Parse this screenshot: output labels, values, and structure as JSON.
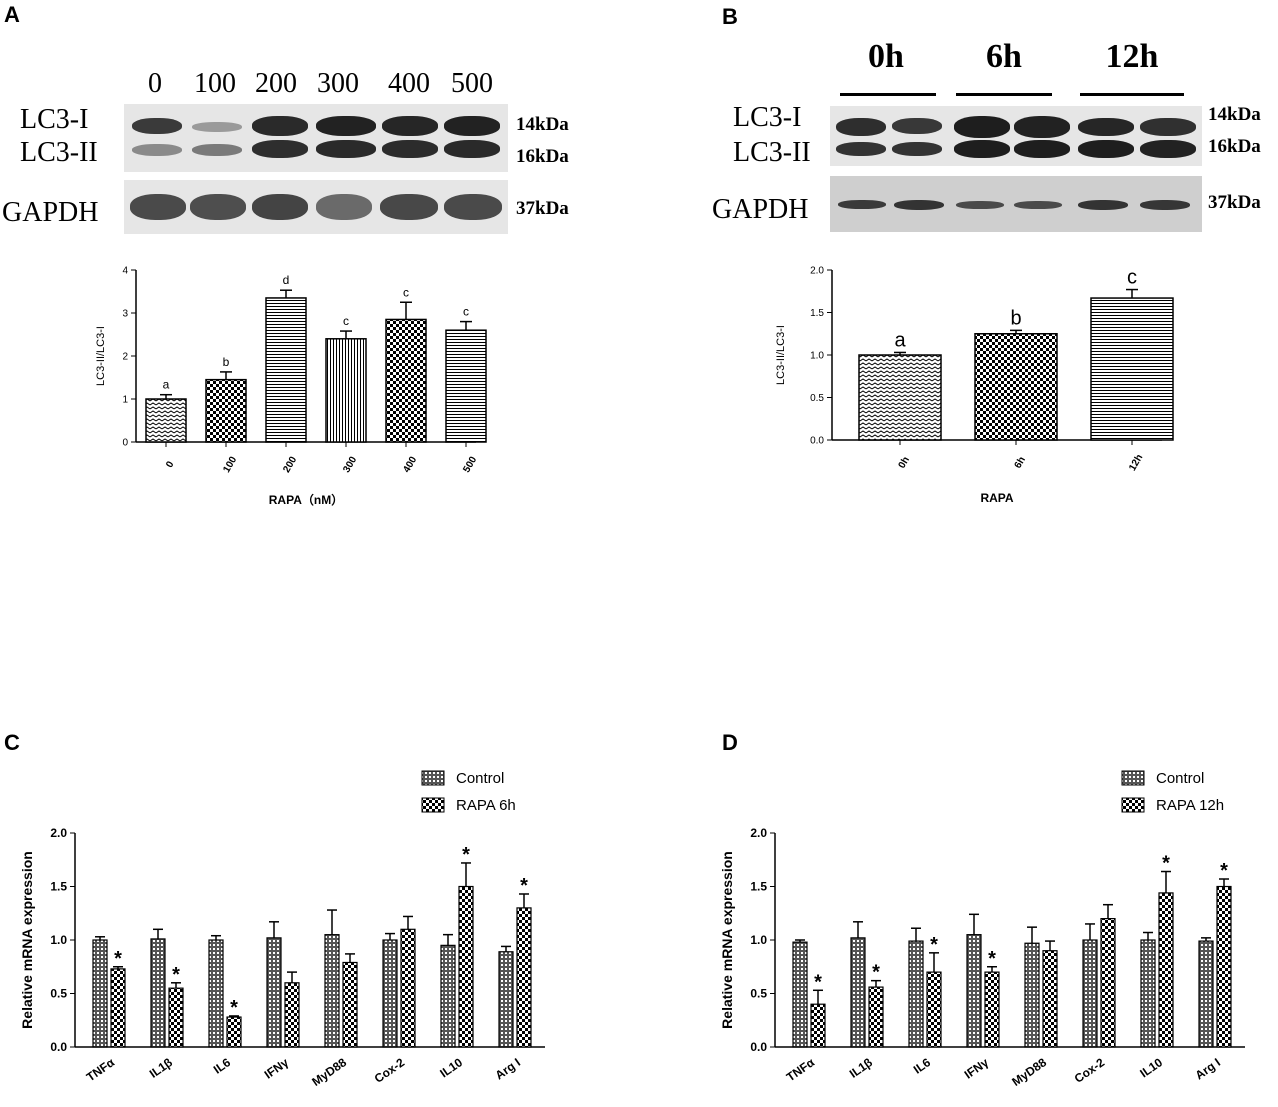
{
  "panels": {
    "A": {
      "label": "A",
      "lanes": [
        "0",
        "100",
        "200",
        "300",
        "400",
        "500"
      ],
      "bands": {
        "lc3i": "LC3-I",
        "lc3ii": "LC3-II",
        "gapdh": "GAPDH"
      },
      "kda": {
        "lc3i": "14kDa",
        "lc3ii": "16kDa",
        "gapdh": "37kDa"
      }
    },
    "B": {
      "label": "B",
      "groups": [
        "0h",
        "6h",
        "12h"
      ],
      "bands": {
        "lc3i": "LC3-I",
        "lc3ii": "LC3-II",
        "gapdh": "GAPDH"
      },
      "kda": {
        "lc3i": "14kDa",
        "lc3ii": "16kDa",
        "gapdh": "37kDa"
      }
    },
    "C": {
      "label": "C"
    },
    "D": {
      "label": "D"
    }
  },
  "chart_data": [
    {
      "id": "A",
      "type": "bar",
      "categories": [
        "0",
        "100",
        "200",
        "300",
        "400",
        "500"
      ],
      "values": [
        1.0,
        1.45,
        3.35,
        2.4,
        2.85,
        2.6
      ],
      "errors": [
        0.1,
        0.18,
        0.18,
        0.18,
        0.4,
        0.2
      ],
      "letters": [
        "a",
        "b",
        "d",
        "c",
        "c",
        "c"
      ],
      "patterns": [
        "zigzag",
        "checker",
        "hlines",
        "vlines",
        "checker",
        "hlines"
      ],
      "xlabel": "RAPA（nM）",
      "ylabel": "LC3-II/LC3-I",
      "ylim": [
        0,
        4
      ],
      "yticks": [
        "0",
        "1",
        "2",
        "3",
        "4"
      ]
    },
    {
      "id": "B",
      "type": "bar",
      "categories": [
        "0h",
        "6h",
        "12h"
      ],
      "values": [
        1.0,
        1.25,
        1.67
      ],
      "errors": [
        0.03,
        0.04,
        0.1
      ],
      "letters": [
        "a",
        "b",
        "c"
      ],
      "patterns": [
        "zigzag",
        "checker",
        "hlines"
      ],
      "xlabel": "RAPA",
      "ylabel": "LC3-II/LC3-I",
      "ylim": [
        0,
        2.0
      ],
      "yticks": [
        "0.0",
        "0.5",
        "1.0",
        "1.5",
        "2.0"
      ]
    },
    {
      "id": "C",
      "type": "bar",
      "categories": [
        "TNFα",
        "IL1β",
        "IL6",
        "IFNγ",
        "MyD88",
        "Cox-2",
        "IL10",
        "Arg I"
      ],
      "series": [
        {
          "name": "Control",
          "values": [
            1.0,
            1.01,
            1.0,
            1.02,
            1.05,
            1.0,
            0.95,
            0.89
          ],
          "errors": [
            0.03,
            0.09,
            0.04,
            0.15,
            0.23,
            0.06,
            0.1,
            0.05
          ]
        },
        {
          "name": "RAPA 6h",
          "values": [
            0.73,
            0.55,
            0.28,
            0.6,
            0.79,
            1.1,
            1.5,
            1.3
          ],
          "errors": [
            0.02,
            0.05,
            0.01,
            0.1,
            0.08,
            0.12,
            0.22,
            0.13
          ]
        }
      ],
      "stars": [
        true,
        true,
        true,
        false,
        false,
        false,
        true,
        true
      ],
      "star_label": "*",
      "ylabel": "Relative mRNA expression",
      "ylim": [
        0,
        2.0
      ],
      "yticks": [
        "0.0",
        "0.5",
        "1.0",
        "1.5",
        "2.0"
      ]
    },
    {
      "id": "D",
      "type": "bar",
      "categories": [
        "TNFα",
        "IL1β",
        "IL6",
        "IFNγ",
        "MyD88",
        "Cox-2",
        "IL10",
        "Arg I"
      ],
      "series": [
        {
          "name": "Control",
          "values": [
            0.98,
            1.02,
            0.99,
            1.05,
            0.97,
            1.0,
            1.0,
            0.99
          ],
          "errors": [
            0.02,
            0.15,
            0.12,
            0.19,
            0.15,
            0.15,
            0.07,
            0.03
          ]
        },
        {
          "name": "RAPA 12h",
          "values": [
            0.4,
            0.56,
            0.7,
            0.7,
            0.9,
            1.2,
            1.44,
            1.5
          ],
          "errors": [
            0.13,
            0.06,
            0.18,
            0.05,
            0.09,
            0.13,
            0.2,
            0.07
          ]
        }
      ],
      "stars": [
        true,
        true,
        true,
        true,
        false,
        false,
        true,
        true
      ],
      "star_label": "*",
      "ylabel": "Relative mRNA expression",
      "ylim": [
        0,
        2.0
      ],
      "yticks": [
        "0.0",
        "0.5",
        "1.0",
        "1.5",
        "2.0"
      ]
    }
  ]
}
